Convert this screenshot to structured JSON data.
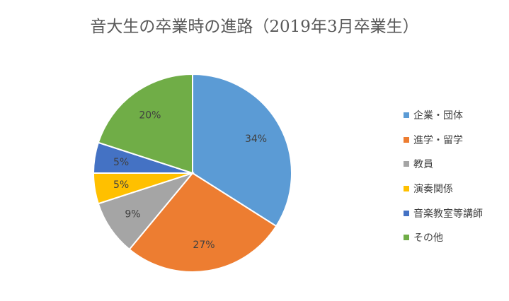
{
  "chart_data": {
    "type": "pie",
    "title": "音大生の卒業時の進路（2019年3月卒業生）",
    "categories": [
      "企業・団体",
      "進学・留学",
      "教員",
      "演奏関係",
      "音楽教室等講師",
      "その他"
    ],
    "values": [
      34,
      27,
      9,
      5,
      5,
      20
    ],
    "data_labels": [
      "34%",
      "27%",
      "9%",
      "5%",
      "5%",
      "20%"
    ],
    "colors": [
      "#5B9BD5",
      "#ED7D31",
      "#A5A5A5",
      "#FFC000",
      "#4472C4",
      "#70AD47"
    ],
    "legend": "right"
  }
}
